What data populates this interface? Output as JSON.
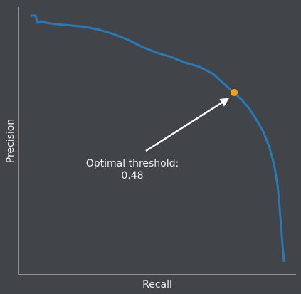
{
  "chart_data": {
    "type": "line",
    "xlabel": "Recall",
    "ylabel": "Precision",
    "xlim": [
      0,
      1
    ],
    "ylim": [
      0,
      1
    ],
    "series": [
      {
        "color": "#2b78b6",
        "x": [
          0.044,
          0.062,
          0.069,
          0.082,
          0.1,
          0.139,
          0.19,
          0.242,
          0.293,
          0.344,
          0.396,
          0.447,
          0.499,
          0.55,
          0.601,
          0.653,
          0.704,
          0.743,
          0.776,
          0.807,
          0.833,
          0.859,
          0.884,
          0.905,
          0.923,
          0.936,
          0.943,
          0.949,
          0.954,
          0.959
        ],
        "values": [
          0.968,
          0.968,
          0.941,
          0.947,
          0.941,
          0.936,
          0.931,
          0.926,
          0.915,
          0.899,
          0.878,
          0.851,
          0.83,
          0.814,
          0.793,
          0.777,
          0.75,
          0.713,
          0.681,
          0.654,
          0.622,
          0.58,
          0.535,
          0.481,
          0.415,
          0.335,
          0.255,
          0.176,
          0.109,
          0.048
        ]
      }
    ],
    "optimal_point": {
      "x": 0.779,
      "y": 0.681,
      "color": "#f5a010"
    },
    "annotation": {
      "lines": [
        "Optimal threshold:",
        "0.48"
      ]
    }
  }
}
